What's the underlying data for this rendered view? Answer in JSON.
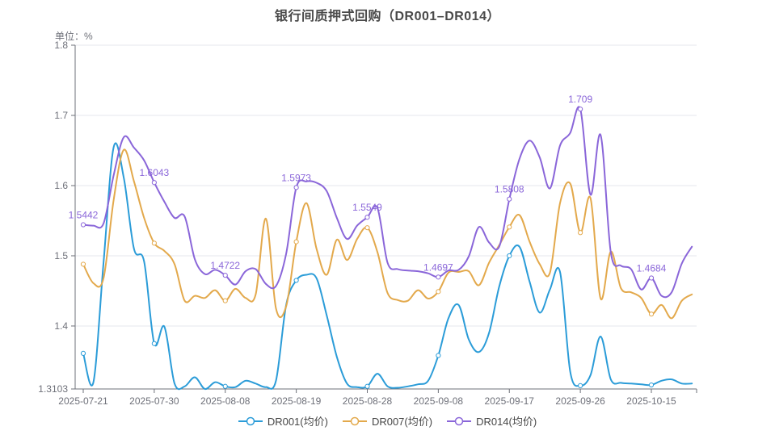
{
  "title": "银行间质押式回购（DR001–DR014）",
  "unit_label": "单位：%",
  "chart_data": {
    "type": "line",
    "title": "银行间质押式回购（DR001–DR014）",
    "unit": "%",
    "legend_position": "bottom",
    "grid": true,
    "x_tick_labels": [
      "2025-07-21",
      "2025-07-30",
      "2025-08-08",
      "2025-08-19",
      "2025-08-28",
      "2025-09-08",
      "2025-09-17",
      "2025-09-26",
      "2025-10-15"
    ],
    "x_tick_indices": [
      0,
      7,
      14,
      21,
      28,
      35,
      42,
      49,
      56
    ],
    "n_points": 61,
    "y_axis": {
      "min": 1.3103,
      "max": 1.8,
      "tick_labels": [
        "1.8",
        "1.7",
        "1.6",
        "1.5",
        "1.4",
        "1.3103"
      ],
      "tick_values": [
        1.8,
        1.7,
        1.6,
        1.5,
        1.4,
        1.3103
      ]
    },
    "style": {
      "axis_color": "#6E7079",
      "grid_color": "#E4E7ED",
      "title_color": "#4a4a4a",
      "legend_text_color": "#464646",
      "point_label_color": "#8A66D9"
    },
    "series": [
      {
        "name": "DR001(均价)",
        "color": "#2B9CD8",
        "values": [
          1.361,
          1.32,
          1.49,
          1.655,
          1.611,
          1.51,
          1.492,
          1.375,
          1.399,
          1.318,
          1.314,
          1.327,
          1.3103,
          1.32,
          1.314,
          1.313,
          1.322,
          1.318,
          1.313,
          1.322,
          1.43,
          1.465,
          1.473,
          1.468,
          1.415,
          1.356,
          1.318,
          1.313,
          1.314,
          1.332,
          1.314,
          1.312,
          1.314,
          1.317,
          1.322,
          1.358,
          1.411,
          1.43,
          1.381,
          1.363,
          1.39,
          1.456,
          1.5,
          1.513,
          1.463,
          1.419,
          1.452,
          1.477,
          1.335,
          1.315,
          1.33,
          1.385,
          1.324,
          1.319,
          1.318,
          1.317,
          1.316,
          1.322,
          1.324,
          1.318,
          1.318
        ]
      },
      {
        "name": "DR007(均价)",
        "color": "#E3A94C",
        "values": [
          1.488,
          1.461,
          1.468,
          1.58,
          1.651,
          1.606,
          1.554,
          1.518,
          1.507,
          1.488,
          1.436,
          1.443,
          1.44,
          1.451,
          1.436,
          1.453,
          1.44,
          1.445,
          1.553,
          1.425,
          1.428,
          1.52,
          1.575,
          1.51,
          1.473,
          1.523,
          1.494,
          1.524,
          1.54,
          1.505,
          1.447,
          1.437,
          1.436,
          1.451,
          1.439,
          1.449,
          1.476,
          1.477,
          1.478,
          1.458,
          1.49,
          1.515,
          1.541,
          1.558,
          1.52,
          1.488,
          1.476,
          1.575,
          1.603,
          1.533,
          1.582,
          1.439,
          1.506,
          1.454,
          1.448,
          1.44,
          1.417,
          1.43,
          1.411,
          1.436,
          1.445
        ]
      },
      {
        "name": "DR014(均价)",
        "color": "#8A66D9",
        "values": [
          1.5442,
          1.543,
          1.546,
          1.615,
          1.669,
          1.654,
          1.636,
          1.6043,
          1.577,
          1.554,
          1.556,
          1.495,
          1.474,
          1.48,
          1.4722,
          1.459,
          1.478,
          1.481,
          1.46,
          1.457,
          1.503,
          1.5973,
          1.606,
          1.604,
          1.592,
          1.554,
          1.524,
          1.543,
          1.5549,
          1.568,
          1.49,
          1.481,
          1.479,
          1.478,
          1.475,
          1.4697,
          1.479,
          1.48,
          1.499,
          1.541,
          1.519,
          1.513,
          1.5808,
          1.638,
          1.664,
          1.64,
          1.596,
          1.657,
          1.675,
          1.709,
          1.587,
          1.672,
          1.505,
          1.486,
          1.481,
          1.452,
          1.4684,
          1.443,
          1.448,
          1.489,
          1.513
        ],
        "point_labels": {
          "0": "1.5442",
          "7": "1.6043",
          "14": "1.4722",
          "21": "1.5973",
          "28": "1.5549",
          "35": "1.4697",
          "42": "1.5808",
          "49": "1.709",
          "56": "1.4684"
        }
      }
    ]
  }
}
